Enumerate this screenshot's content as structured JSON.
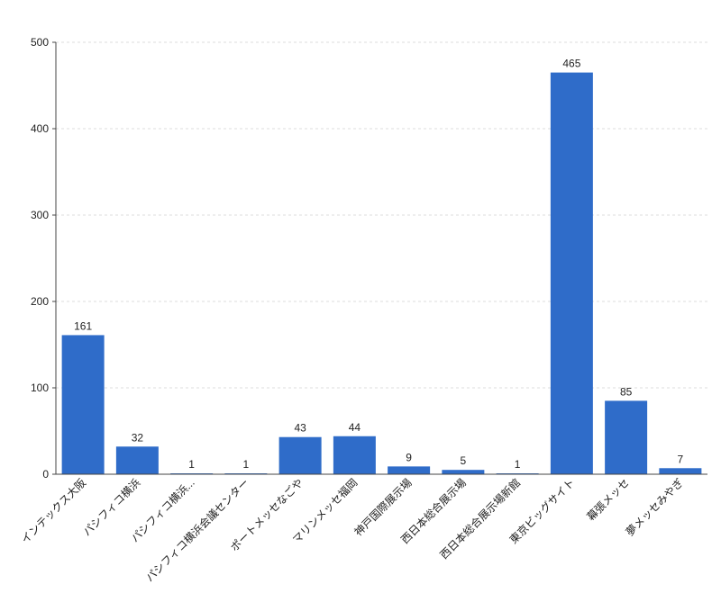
{
  "chart_data": {
    "type": "bar",
    "categories": [
      "インテックス大阪",
      "パシフィコ横浜",
      "パシフィコ横浜...",
      "パシフィコ横浜会議センター",
      "ポートメッセなごや",
      "マリンメッセ福岡",
      "神戸国際展示場",
      "西日本総合展示場",
      "西日本総合展示場新館",
      "東京ビッグサイト",
      "幕張メッセ",
      "夢メッセみやぎ"
    ],
    "values": [
      161,
      32,
      1,
      1,
      43,
      44,
      9,
      5,
      1,
      465,
      85,
      7
    ],
    "color": "#2f6cc9",
    "ylim": [
      0,
      500
    ],
    "yticks": [
      0,
      100,
      200,
      300,
      400,
      500
    ],
    "grid": true
  }
}
